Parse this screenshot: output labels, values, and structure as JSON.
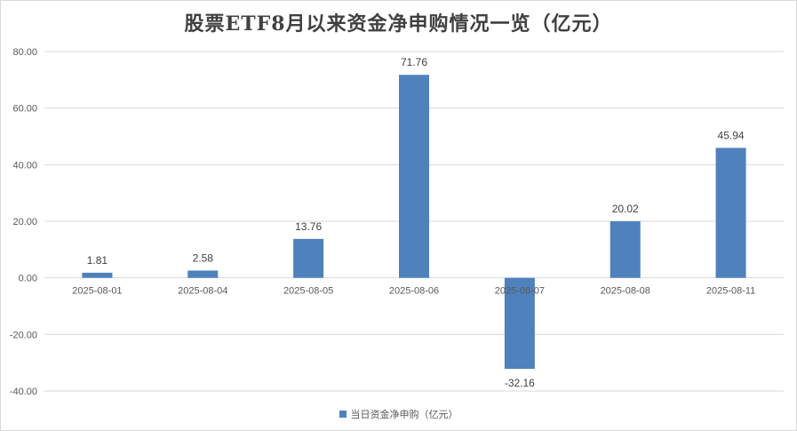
{
  "chart_data": {
    "type": "bar",
    "title": "股票ETF8月以来资金净申购情况一览（亿元）",
    "categories": [
      "2025-08-01",
      "2025-08-04",
      "2025-08-05",
      "2025-08-06",
      "2025-08-07",
      "2025-08-08",
      "2025-08-11"
    ],
    "series": [
      {
        "name": "当日资金净申购（亿元）",
        "values": [
          1.81,
          2.58,
          13.76,
          71.76,
          -32.16,
          20.02,
          45.94
        ],
        "color": "#4f81bd"
      }
    ],
    "data_labels": [
      "1.81",
      "2.58",
      "13.76",
      "71.76",
      "-32.16",
      "20.02",
      "45.94"
    ],
    "y_ticks": [
      "80.00",
      "60.00",
      "40.00",
      "20.00",
      "0.00",
      "-20.00",
      "-40.00"
    ],
    "ylim": [
      -40,
      80
    ],
    "grid": true,
    "legend_position": "bottom"
  }
}
